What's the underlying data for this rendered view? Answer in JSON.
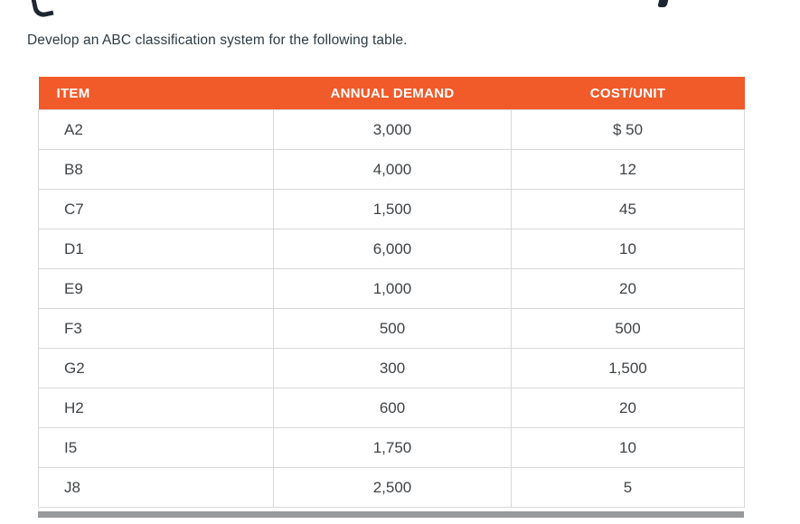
{
  "intro": "Develop an ABC classification system for the following table.",
  "table": {
    "headers": [
      "ITEM",
      "ANNUAL DEMAND",
      "COST/UNIT"
    ],
    "rows": [
      [
        "A2",
        "3,000",
        "$ 50"
      ],
      [
        "B8",
        "4,000",
        "12"
      ],
      [
        "C7",
        "1,500",
        "45"
      ],
      [
        "D1",
        "6,000",
        "10"
      ],
      [
        "E9",
        "1,000",
        "20"
      ],
      [
        "F3",
        "500",
        "500"
      ],
      [
        "G2",
        "300",
        "1,500"
      ],
      [
        "H2",
        "600",
        "20"
      ],
      [
        "I5",
        "1,750",
        "10"
      ],
      [
        "J8",
        "2,500",
        "5"
      ]
    ]
  },
  "colors": {
    "header_bg": "#f15a29",
    "header_text": "#ffffff",
    "cell_text": "#3f4347",
    "border": "#d8d8d8",
    "bottom_bar": "#97999b"
  }
}
